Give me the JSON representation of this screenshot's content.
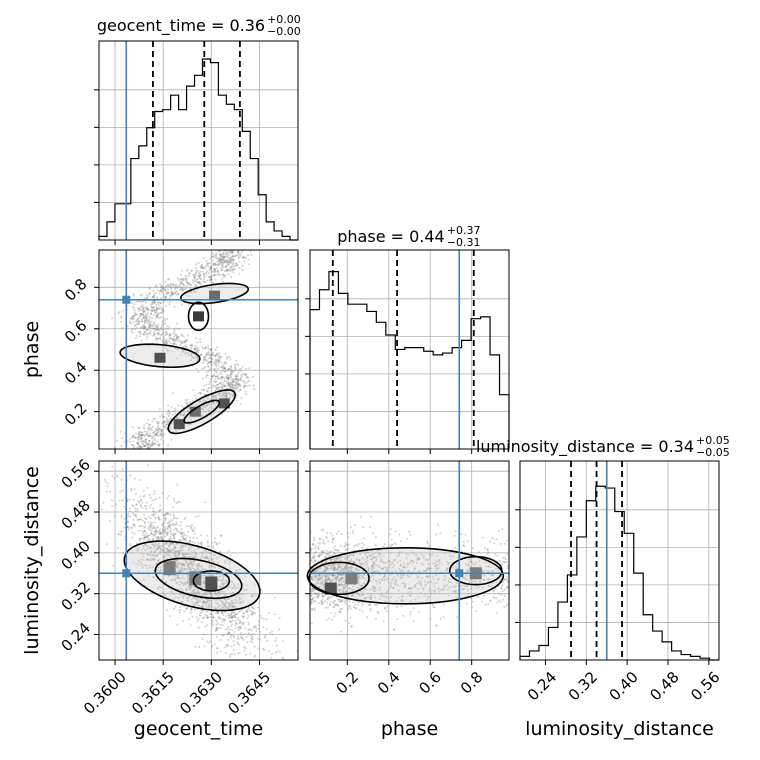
{
  "chart_data": {
    "type": "corner",
    "parameters": [
      "geocent_time",
      "phase",
      "luminosity_distance"
    ],
    "truth_color": "#4682b4",
    "truths": {
      "geocent_time": 0.36035,
      "phase": 0.74,
      "luminosity_distance": 0.36
    },
    "ranges": {
      "geocent_time": [
        0.3595,
        0.3657
      ],
      "phase": [
        0.02,
        0.98
      ],
      "luminosity_distance": [
        0.19,
        0.58
      ]
    },
    "ticks": {
      "geocent_time": [
        {
          "v": 0.36,
          "label": "0.3600"
        },
        {
          "v": 0.3615,
          "label": "0.3615"
        },
        {
          "v": 0.363,
          "label": "0.3630"
        },
        {
          "v": 0.3645,
          "label": "0.3645"
        }
      ],
      "phase": [
        {
          "v": 0.2,
          "label": "0.2"
        },
        {
          "v": 0.4,
          "label": "0.4"
        },
        {
          "v": 0.6,
          "label": "0.6"
        },
        {
          "v": 0.8,
          "label": "0.8"
        }
      ],
      "luminosity_distance": [
        {
          "v": 0.24,
          "label": "0.24"
        },
        {
          "v": 0.32,
          "label": "0.32"
        },
        {
          "v": 0.4,
          "label": "0.40"
        },
        {
          "v": 0.48,
          "label": "0.48"
        },
        {
          "v": 0.56,
          "label": "0.56"
        }
      ]
    },
    "histograms": {
      "geocent_time": [
        0.02,
        0.1,
        0.2,
        0.2,
        0.45,
        0.52,
        0.62,
        0.71,
        0.72,
        0.8,
        0.72,
        0.85,
        0.91,
        1.0,
        0.98,
        0.8,
        0.75,
        0.72,
        0.6,
        0.45,
        0.25,
        0.1,
        0.05,
        0.02,
        0.0
      ],
      "phase": [
        0.77,
        0.88,
        0.98,
        0.86,
        0.8,
        0.8,
        0.76,
        0.7,
        0.63,
        0.55,
        0.56,
        0.56,
        0.54,
        0.52,
        0.53,
        0.56,
        0.6,
        0.72,
        0.73,
        0.52,
        0.3
      ],
      "luminosity_distance": [
        0.02,
        0.05,
        0.08,
        0.18,
        0.32,
        0.47,
        0.68,
        0.88,
        0.96,
        0.95,
        0.82,
        0.7,
        0.48,
        0.25,
        0.16,
        0.1,
        0.05,
        0.03,
        0.02,
        0.01,
        0.0
      ]
    },
    "quantiles": {
      "geocent_time": [
        0.36118,
        0.36278,
        0.36389
      ],
      "phase": [
        0.13,
        0.44,
        0.81
      ],
      "luminosity_distance": [
        0.29,
        0.34,
        0.39
      ]
    },
    "titles": {
      "geocent_time": {
        "text": "geocent_time = 0.36",
        "plus": "+0.00",
        "minus": "−0.00"
      },
      "phase": {
        "text": "phase = 0.44",
        "plus": "+0.37",
        "minus": "−0.31"
      },
      "luminosity_distance": {
        "text": "luminosity_distance = 0.34",
        "plus": "+0.05",
        "minus": "−0.05"
      }
    },
    "axis_labels": {
      "geocent_time": "geocent_time",
      "phase": "phase",
      "luminosity_distance": "luminosity_distance"
    },
    "grid": true
  }
}
